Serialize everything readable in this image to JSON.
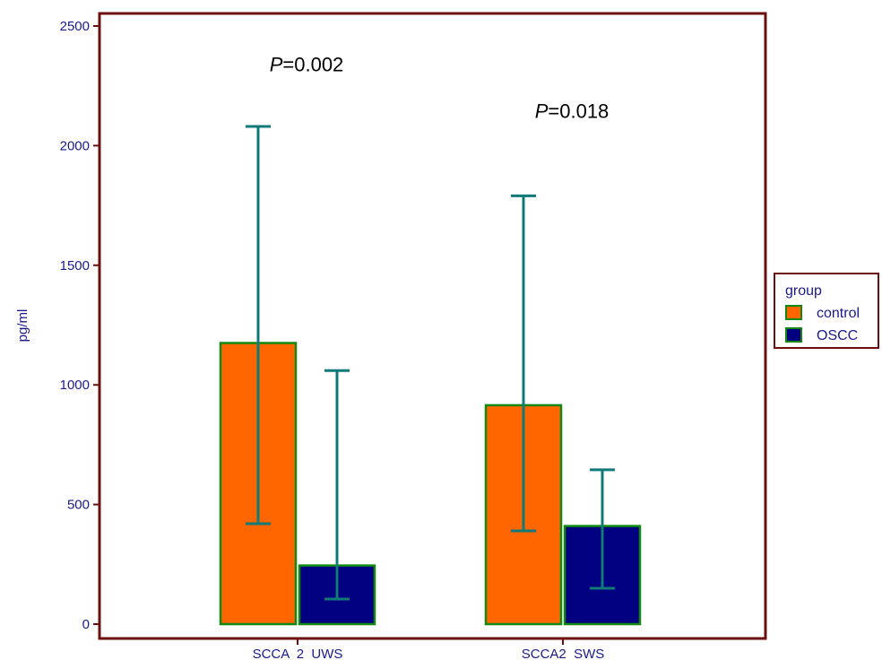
{
  "chart_data": {
    "type": "bar",
    "ylabel": "pg/ml",
    "xlabel": "",
    "ylim": [
      0,
      2500
    ],
    "yticks": [
      0,
      500,
      1000,
      1500,
      2000,
      2500
    ],
    "categories": [
      "SCCA  2  UWS",
      "SCCA2  SWS"
    ],
    "series": [
      {
        "name": "control",
        "values": [
          1175,
          915
        ],
        "error_low": [
          420,
          390
        ],
        "error_high": [
          2080,
          1790
        ]
      },
      {
        "name": "OSCC",
        "values": [
          245,
          410
        ],
        "error_low": [
          105,
          150
        ],
        "error_high": [
          1060,
          645
        ]
      }
    ],
    "annotations": [
      {
        "prefix": "P",
        "text": "=0.002",
        "category_index": 0,
        "y": 2310
      },
      {
        "prefix": "P",
        "text": "=0.018",
        "category_index": 1,
        "y": 2115
      }
    ],
    "legend": {
      "title": "group",
      "position": "right",
      "items": [
        "control",
        "OSCC"
      ]
    },
    "colors": {
      "frame": "#6b0f0f",
      "control": "#ff6600",
      "OSCC": "#000080",
      "bar_edge": "#118811",
      "error_bar": "#117a78",
      "text": "#1a1a8c"
    },
    "grid": false
  }
}
